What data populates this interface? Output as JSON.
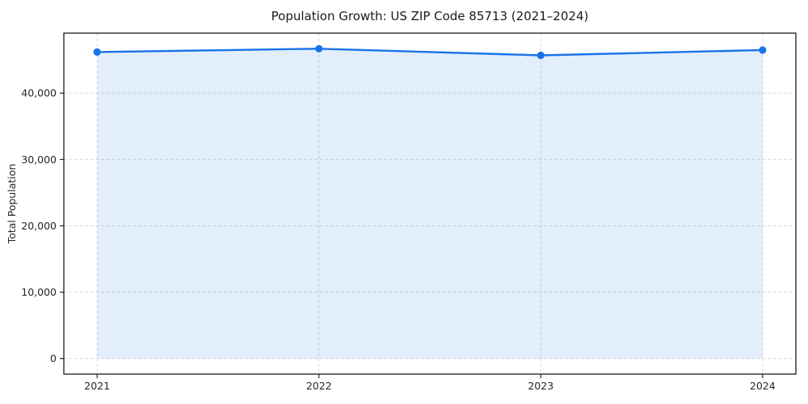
{
  "chart_data": {
    "type": "area",
    "title": "Population Growth: US ZIP Code 85713 (2021–2024)",
    "xlabel": "",
    "ylabel": "Total Population",
    "x": [
      2021,
      2022,
      2023,
      2024
    ],
    "x_tick_labels": [
      "2021",
      "2022",
      "2023",
      "2024"
    ],
    "series": [
      {
        "name": "Total Population",
        "values": [
          46200,
          46700,
          45700,
          46500
        ]
      }
    ],
    "fill_to_zero": true,
    "marker": "circle",
    "yticks": [
      0,
      10000,
      20000,
      30000,
      40000
    ],
    "ytick_labels": [
      "0",
      "10,000",
      "20,000",
      "30,000",
      "40,000"
    ],
    "xlim": [
      2020.85,
      2024.15
    ],
    "ylim": [
      -2350,
      49050
    ],
    "grid": true,
    "grid_style": "dashed",
    "legend_position": "none",
    "colors": {
      "line": "#1a73e8",
      "marker": "#1a73e8",
      "fill": "#1a73e8",
      "fill_opacity": 0.12,
      "grid": "#d9d9d9",
      "spine": "#1a1a1a",
      "tick_text": "#262626"
    }
  }
}
